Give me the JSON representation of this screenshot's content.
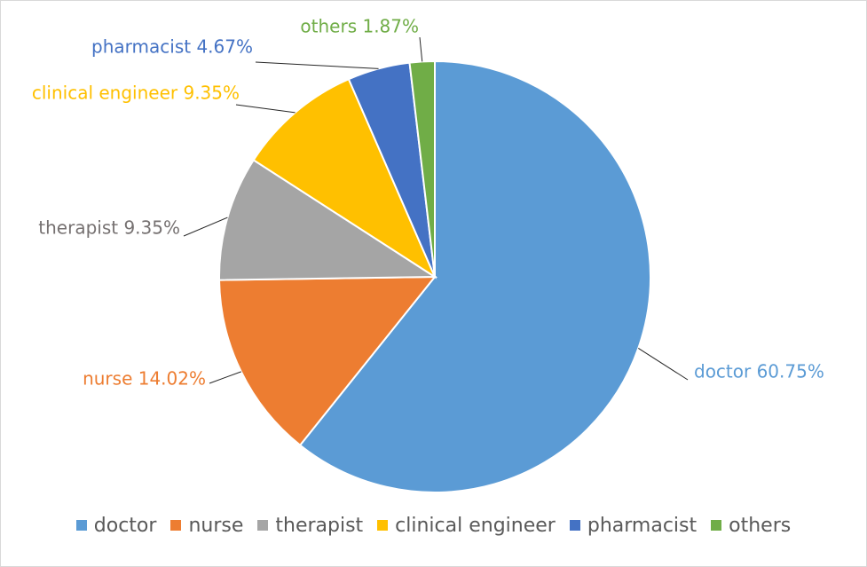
{
  "chart_data": {
    "type": "pie",
    "title": "",
    "categories": [
      "doctor",
      "nurse",
      "therapist",
      "clinical engineer",
      "pharmacist",
      "others"
    ],
    "values": [
      60.75,
      14.02,
      9.35,
      9.35,
      4.67,
      1.87
    ],
    "unit": "%",
    "data_labels": [
      "doctor 60.75%",
      "nurse 14.02%",
      "therapist 9.35%",
      "clinical engineer 9.35%",
      "pharmacist 4.67%",
      "others 1.87%"
    ],
    "colors": [
      "#5B9BD5",
      "#ED7D31",
      "#A5A5A5",
      "#FFC000",
      "#4472C4",
      "#70AD47"
    ],
    "label_colors": [
      "#5B9BD5",
      "#ED7D31",
      "#767171",
      "#FFC000",
      "#4472C4",
      "#70AD47"
    ],
    "legend": {
      "position": "bottom",
      "entries": [
        "doctor",
        "nurse",
        "therapist",
        "clinical engineer",
        "pharmacist",
        "others"
      ]
    }
  }
}
